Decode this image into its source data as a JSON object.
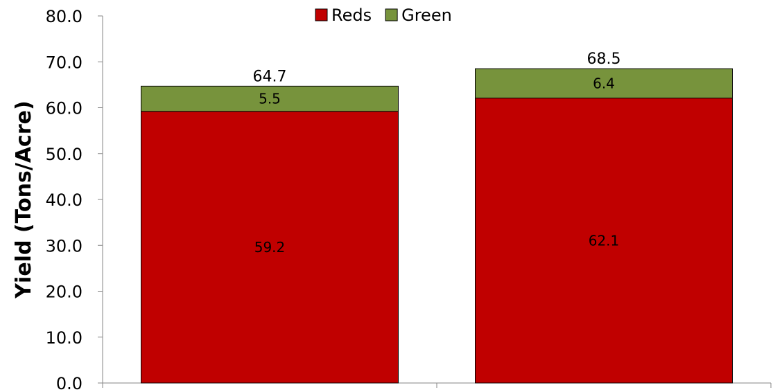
{
  "chart_data": {
    "type": "bar",
    "stacked": true,
    "categories": [
      "",
      ""
    ],
    "series": [
      {
        "name": "Reds",
        "values": [
          59.2,
          62.1
        ],
        "color": "#c00000"
      },
      {
        "name": "Green",
        "values": [
          5.5,
          6.4
        ],
        "color": "#77933c"
      }
    ],
    "totals": [
      64.7,
      68.5
    ],
    "segment_labels": [
      [
        "59.2",
        "5.5"
      ],
      [
        "62.1",
        "6.4"
      ]
    ],
    "total_labels": [
      "64.7",
      "68.5"
    ],
    "ylabel": "Yield  (Tons/Acre)",
    "xlabel": "",
    "ylim": [
      0,
      80
    ],
    "yticks": [
      "0.0",
      "10.0",
      "20.0",
      "30.0",
      "40.0",
      "50.0",
      "60.0",
      "70.0",
      "80.0"
    ],
    "grid": false,
    "legend_position": "top-center"
  }
}
